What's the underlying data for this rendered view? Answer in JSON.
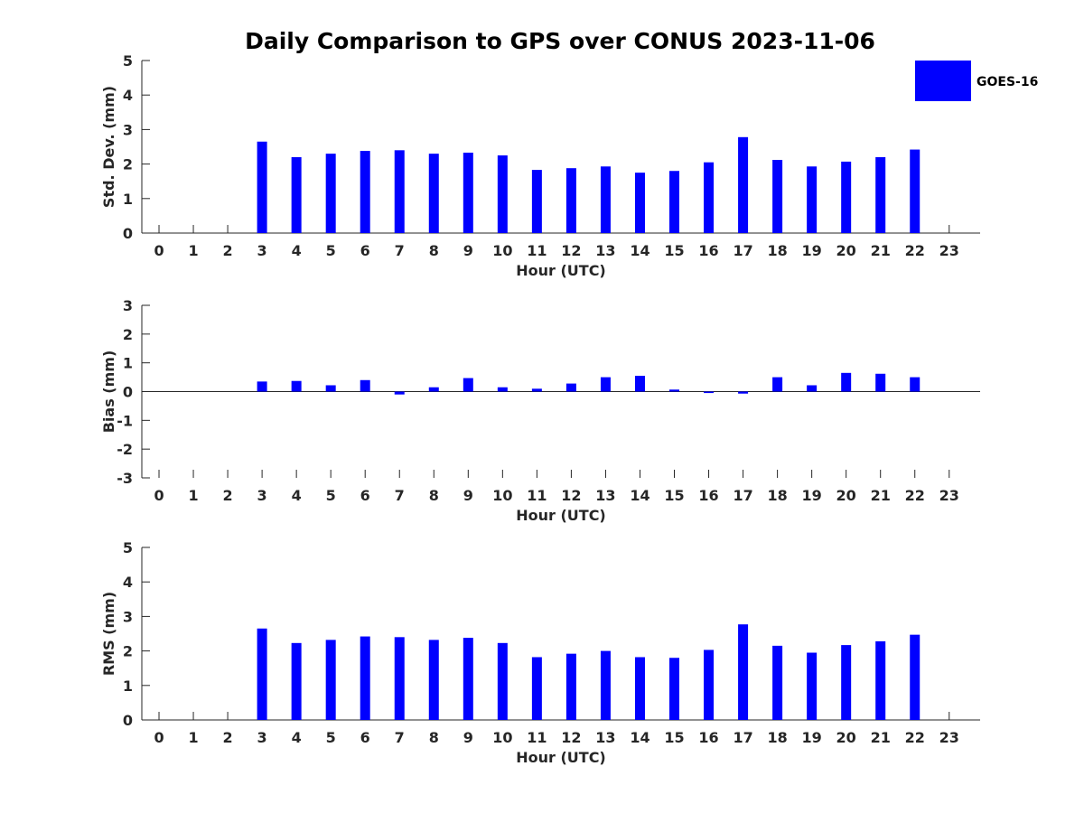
{
  "title": "Daily Comparison to GPS over CONUS 2023-11-06",
  "legend": {
    "label": "GOES-16",
    "color": "#0000ff",
    "placement": "top-right"
  },
  "chart_data": [
    {
      "type": "bar",
      "xlabel": "Hour (UTC)",
      "ylabel": "Std. Dev. (mm)",
      "xlim": [
        -0.5,
        23.9
      ],
      "ylim": [
        0,
        5
      ],
      "yticks": [
        0,
        1,
        2,
        3,
        4,
        5
      ],
      "categories": [
        0,
        1,
        2,
        3,
        4,
        5,
        6,
        7,
        8,
        9,
        10,
        11,
        12,
        13,
        14,
        15,
        16,
        17,
        18,
        19,
        20,
        21,
        22,
        23
      ],
      "series": [
        {
          "name": "GOES-16",
          "values": [
            null,
            null,
            null,
            2.65,
            2.2,
            2.3,
            2.38,
            2.4,
            2.3,
            2.33,
            2.25,
            1.83,
            1.88,
            1.93,
            1.75,
            1.8,
            2.05,
            2.78,
            2.12,
            1.93,
            2.07,
            2.2,
            2.42,
            null
          ]
        }
      ]
    },
    {
      "type": "bar",
      "xlabel": "Hour (UTC)",
      "ylabel": "Bias (mm)",
      "xlim": [
        -0.5,
        23.9
      ],
      "ylim": [
        -3,
        3
      ],
      "yticks": [
        -3,
        -2,
        -1,
        0,
        1,
        2,
        3
      ],
      "categories": [
        0,
        1,
        2,
        3,
        4,
        5,
        6,
        7,
        8,
        9,
        10,
        11,
        12,
        13,
        14,
        15,
        16,
        17,
        18,
        19,
        20,
        21,
        22,
        23
      ],
      "series": [
        {
          "name": "GOES-16",
          "values": [
            null,
            null,
            null,
            0.35,
            0.37,
            0.22,
            0.4,
            -0.1,
            0.15,
            0.47,
            0.15,
            0.1,
            0.28,
            0.5,
            0.55,
            0.07,
            -0.05,
            -0.07,
            0.5,
            0.22,
            0.65,
            0.62,
            0.5,
            null
          ]
        }
      ]
    },
    {
      "type": "bar",
      "xlabel": "Hour (UTC)",
      "ylabel": "RMS (mm)",
      "xlim": [
        -0.5,
        23.9
      ],
      "ylim": [
        0,
        5
      ],
      "yticks": [
        0,
        1,
        2,
        3,
        4,
        5
      ],
      "categories": [
        0,
        1,
        2,
        3,
        4,
        5,
        6,
        7,
        8,
        9,
        10,
        11,
        12,
        13,
        14,
        15,
        16,
        17,
        18,
        19,
        20,
        21,
        22,
        23
      ],
      "series": [
        {
          "name": "GOES-16",
          "values": [
            null,
            null,
            null,
            2.65,
            2.23,
            2.32,
            2.42,
            2.4,
            2.32,
            2.38,
            2.23,
            1.82,
            1.92,
            2.0,
            1.82,
            1.8,
            2.03,
            2.77,
            2.15,
            1.95,
            2.17,
            2.28,
            2.47,
            null
          ]
        }
      ]
    }
  ]
}
